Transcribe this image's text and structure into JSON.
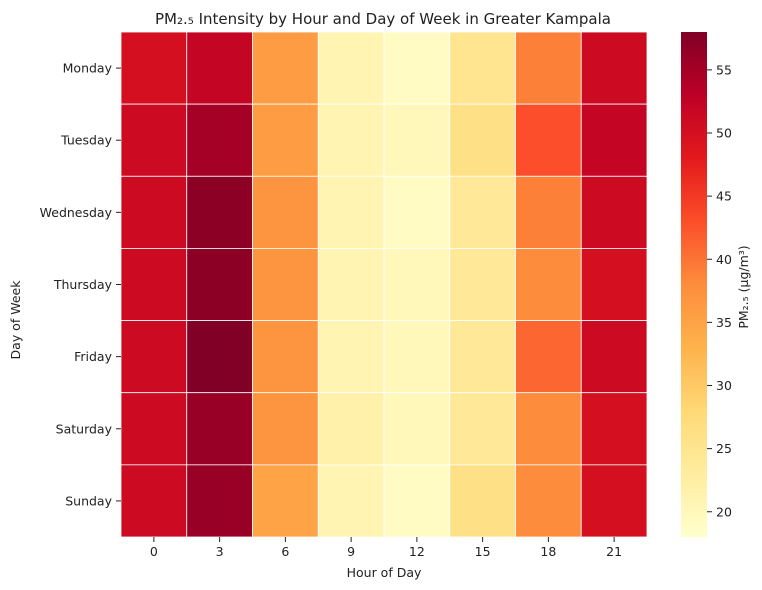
{
  "chart_data": {
    "type": "heatmap",
    "title": "PM₂.₅ Intensity by Hour and Day of Week in Greater Kampala",
    "xlabel": "Hour of Day",
    "ylabel": "Day of Week",
    "x_categories": [
      "0",
      "3",
      "6",
      "9",
      "12",
      "15",
      "18",
      "21"
    ],
    "y_categories": [
      "Monday",
      "Tuesday",
      "Wednesday",
      "Thursday",
      "Friday",
      "Saturday",
      "Sunday"
    ],
    "values": [
      [
        50,
        52,
        36,
        21,
        19,
        25,
        39,
        51
      ],
      [
        51,
        55,
        36,
        21,
        20,
        26,
        43,
        52
      ],
      [
        51,
        57,
        37,
        21,
        19,
        24,
        39,
        51
      ],
      [
        51,
        57,
        37,
        21,
        20,
        24,
        38,
        50
      ],
      [
        51,
        58,
        37,
        21,
        20,
        24,
        41,
        51
      ],
      [
        51,
        56,
        37,
        22,
        20,
        24,
        38,
        50
      ],
      [
        51,
        56,
        35,
        21,
        19,
        26,
        38,
        50
      ]
    ],
    "colorbar": {
      "label": "PM₂.₅ (μg/m³)",
      "min": 18,
      "max": 58,
      "ticks": [
        20,
        25,
        30,
        35,
        40,
        45,
        50,
        55
      ],
      "colormap": "YlOrRd"
    },
    "grid": false
  }
}
